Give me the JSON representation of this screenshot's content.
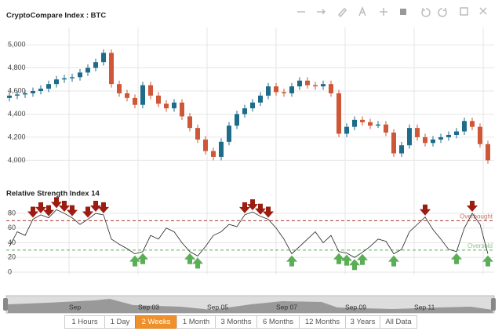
{
  "chart_data": [
    {
      "type": "candlestick",
      "title": "CryptoCompare Index : BTC",
      "ylim": [
        3860,
        5150
      ],
      "yticks": [
        {
          "value": 4000,
          "label": "4,000"
        },
        {
          "value": 4200,
          "label": "4,200"
        },
        {
          "value": 4400,
          "label": "4,400"
        },
        {
          "value": 4600,
          "label": "4,600"
        },
        {
          "value": 4800,
          "label": "4,800"
        },
        {
          "value": 5000,
          "label": "5,000"
        }
      ],
      "up_color": "#1e6b8a",
      "down_color": "#cf5636",
      "grid": true,
      "open": [
        4540,
        4560,
        4570,
        4580,
        4600,
        4620,
        4660,
        4700,
        4710,
        4720,
        4760,
        4800,
        4850,
        4930,
        4660,
        4580,
        4540,
        4480,
        4650,
        4560,
        4490,
        4450,
        4500,
        4380,
        4280,
        4180,
        4080,
        4030,
        4160,
        4300,
        4400,
        4450,
        4500,
        4560,
        4640,
        4590,
        4580,
        4640,
        4690,
        4650,
        4640,
        4660,
        4580,
        4230,
        4290,
        4350,
        4330,
        4300,
        4310,
        4240,
        4060,
        4130,
        4280,
        4200,
        4150,
        4180,
        4200,
        4220,
        4250,
        4340,
        4290,
        4140
      ],
      "high": [
        4590,
        4600,
        4610,
        4630,
        4650,
        4690,
        4730,
        4740,
        4750,
        4790,
        4830,
        4880,
        4960,
        4960,
        4690,
        4610,
        4570,
        4680,
        4680,
        4590,
        4520,
        4530,
        4530,
        4410,
        4310,
        4210,
        4110,
        4190,
        4330,
        4430,
        4480,
        4530,
        4590,
        4670,
        4670,
        4620,
        4670,
        4720,
        4720,
        4680,
        4690,
        4690,
        4610,
        4320,
        4380,
        4380,
        4360,
        4340,
        4340,
        4270,
        4160,
        4310,
        4310,
        4230,
        4210,
        4230,
        4250,
        4280,
        4370,
        4370,
        4320,
        4170
      ],
      "low": [
        4510,
        4530,
        4540,
        4550,
        4570,
        4590,
        4630,
        4670,
        4680,
        4690,
        4730,
        4770,
        4820,
        4630,
        4550,
        4510,
        4450,
        4450,
        4530,
        4460,
        4420,
        4420,
        4350,
        4250,
        4150,
        4050,
        4000,
        4000,
        4130,
        4270,
        4370,
        4420,
        4470,
        4530,
        4560,
        4550,
        4550,
        4610,
        4620,
        4610,
        4610,
        4550,
        4200,
        4200,
        4260,
        4300,
        4270,
        4280,
        4210,
        4030,
        4030,
        4100,
        4170,
        4120,
        4120,
        4150,
        4170,
        4190,
        4220,
        4260,
        4110,
        3970
      ],
      "close": [
        4560,
        4570,
        4580,
        4600,
        4620,
        4660,
        4700,
        4710,
        4720,
        4760,
        4800,
        4850,
        4930,
        4660,
        4580,
        4540,
        4480,
        4650,
        4560,
        4490,
        4450,
        4500,
        4380,
        4280,
        4180,
        4080,
        4030,
        4160,
        4300,
        4400,
        4450,
        4500,
        4560,
        4640,
        4590,
        4580,
        4640,
        4690,
        4650,
        4640,
        4660,
        4580,
        4230,
        4290,
        4350,
        4330,
        4300,
        4310,
        4240,
        4060,
        4130,
        4280,
        4200,
        4150,
        4180,
        4200,
        4220,
        4250,
        4340,
        4290,
        4140,
        4000
      ]
    },
    {
      "type": "line",
      "title": "Relative Strength Index 14",
      "color": "#222",
      "ylim": [
        0,
        95
      ],
      "yticks": [
        0,
        20,
        40,
        60,
        80
      ],
      "overbought": 70,
      "oversold": 30,
      "overbought_label": "Overbought",
      "oversold_label": "Oversold",
      "overbought_color": "#a33a2a",
      "oversold_color": "#5aae55",
      "values": [
        35,
        55,
        50,
        72,
        78,
        74,
        85,
        80,
        74,
        65,
        72,
        80,
        78,
        45,
        38,
        32,
        25,
        28,
        50,
        45,
        60,
        55,
        40,
        28,
        22,
        35,
        50,
        55,
        65,
        62,
        78,
        82,
        76,
        72,
        60,
        45,
        25,
        35,
        45,
        55,
        40,
        50,
        28,
        26,
        20,
        27,
        35,
        45,
        42,
        25,
        31,
        55,
        65,
        75,
        58,
        45,
        31,
        28,
        60,
        80,
        65,
        25
      ]
    }
  ],
  "navigator_labels": [
    "Sep",
    "Sep 03",
    "Sep 05",
    "Sep 07",
    "Sep 09",
    "Sep 11"
  ],
  "range_buttons": [
    "1 Hours",
    "1 Day",
    "2 Weeks",
    "1 Month",
    "3 Months",
    "6 Months",
    "12 Months",
    "3 Years",
    "All Data"
  ],
  "selected_range": 2
}
